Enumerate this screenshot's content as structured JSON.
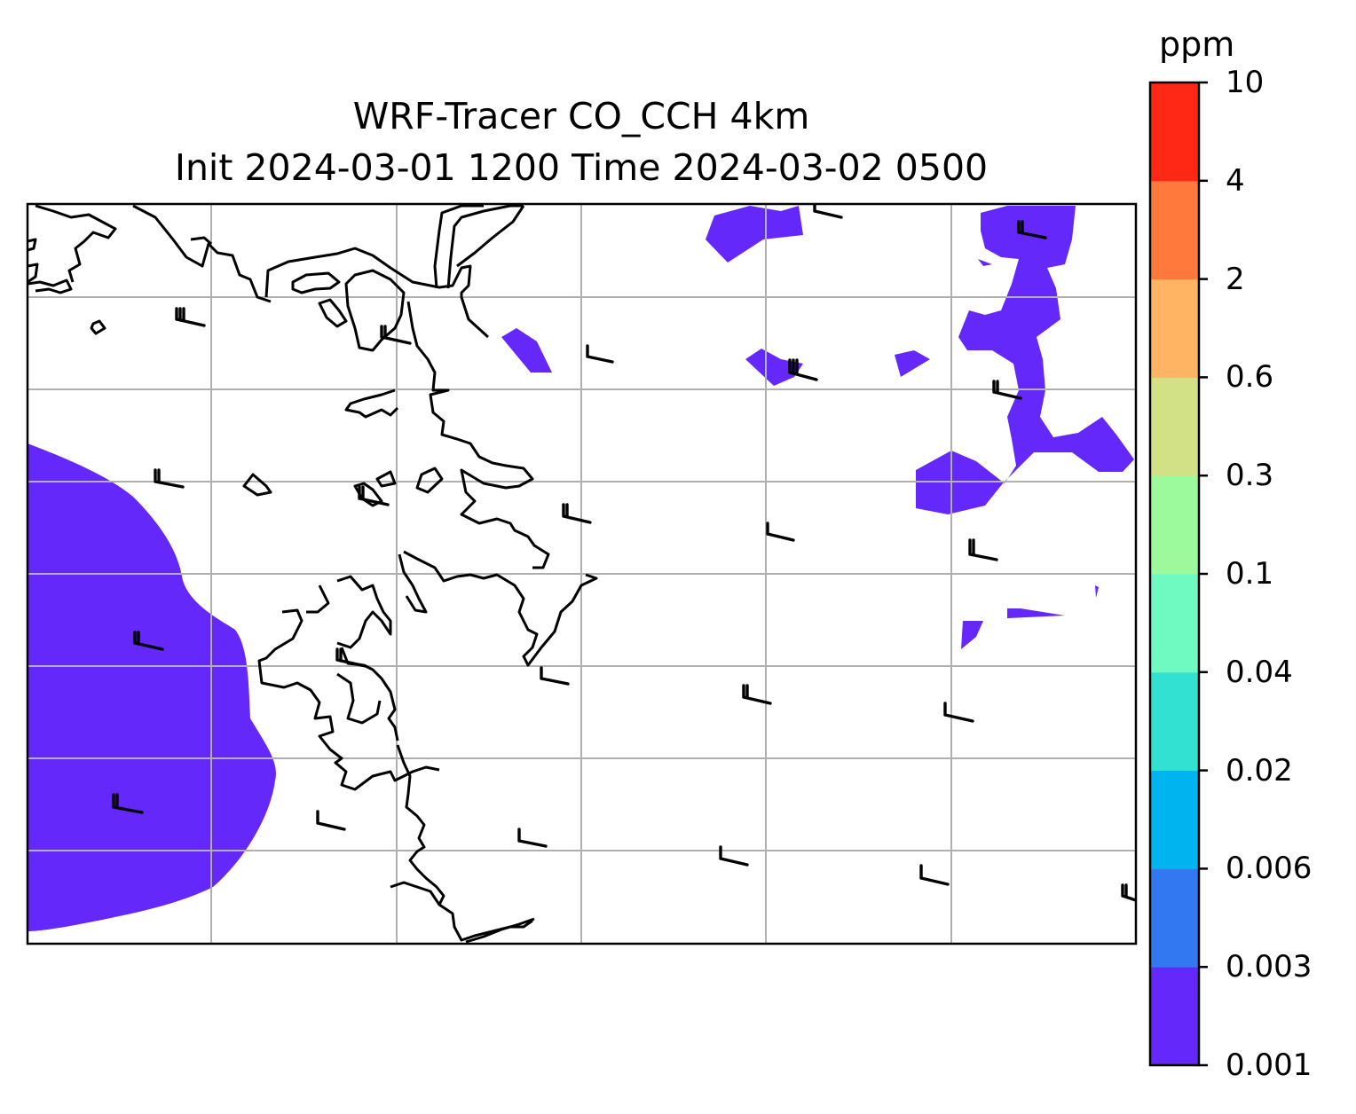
{
  "figure": {
    "title_line1": "WRF-Tracer CO_CCH 4km",
    "title_line2": "Init 2024-03-01 1200 Time 2024-03-02 0500"
  },
  "colorbar": {
    "units": "ppm",
    "levels": [
      "0.001",
      "0.003",
      "0.006",
      "0.02",
      "0.04",
      "0.1",
      "0.3",
      "0.6",
      "2",
      "4",
      "10"
    ],
    "colors": [
      "#6428fa",
      "#3278f0",
      "#00b4f0",
      "#32e1d2",
      "#6efac0",
      "#9cfa9c",
      "#d2e186",
      "#ffb464",
      "#ff783c",
      "#ff2814"
    ]
  },
  "map": {
    "background": "#ffffff",
    "coastline_color": "#000000",
    "gridline_color": "#b0b0b0",
    "tracer_fill_color": "#6428fa",
    "wind_barb_color": "#000000"
  }
}
